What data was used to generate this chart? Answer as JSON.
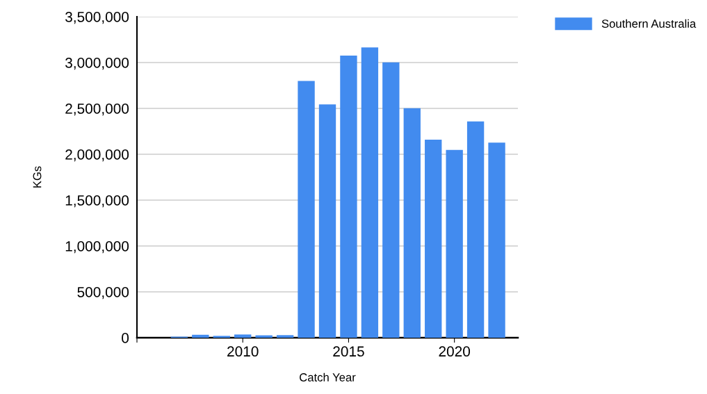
{
  "chart_data": {
    "type": "bar",
    "xlabel": "Catch Year",
    "ylabel": "KGs",
    "x": [
      2007,
      2008,
      2009,
      2010,
      2011,
      2012,
      2013,
      2014,
      2015,
      2016,
      2017,
      2018,
      2019,
      2020,
      2021,
      2022
    ],
    "series": [
      {
        "name": "Southern Australia",
        "color": "#428bef",
        "values": [
          11000,
          32000,
          20000,
          35000,
          26000,
          28000,
          2800000,
          2543000,
          3076000,
          3164000,
          3002000,
          2502000,
          2159000,
          2048000,
          2358000,
          2127000
        ]
      }
    ],
    "xlim": [
      2005,
      2023
    ],
    "xticks": [
      {
        "value": 2005,
        "label": null
      },
      2010,
      2015,
      2020
    ],
    "ylim": [
      0,
      3500000
    ],
    "yticks": [
      {
        "value": 0,
        "label": "0"
      },
      {
        "value": 500000,
        "label": "500,000"
      },
      {
        "value": 1000000,
        "label": "1,000,000"
      },
      {
        "value": 1500000,
        "label": "1,500,000"
      },
      {
        "value": 2000000,
        "label": "2,000,000"
      },
      {
        "value": 2500000,
        "label": "2,500,000"
      },
      {
        "value": 3000000,
        "label": "3,000,000"
      },
      {
        "value": 3500000,
        "label": "3,500,000"
      }
    ],
    "grid": "y",
    "legend": "top right"
  }
}
